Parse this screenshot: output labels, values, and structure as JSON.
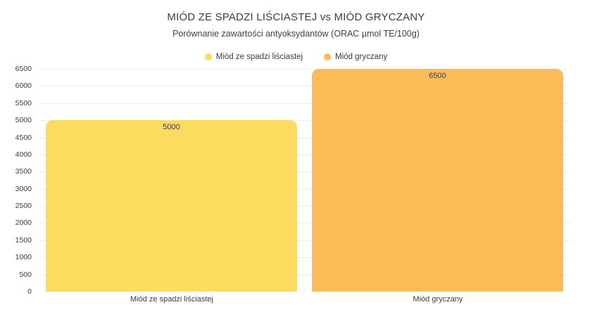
{
  "header": {
    "title": "MIÓD ZE SPADZI LIŚCIASTEJ vs MIÓD GRYCZANY",
    "subtitle": "Porównanie zawartości antyoksydantów (ORAC µmol TE/100g)"
  },
  "chart_data": {
    "type": "bar",
    "title": "MIÓD ZE SPADZI LIŚCIASTEJ vs MIÓD GRYCZANY",
    "subtitle": "Porównanie zawartości antyoksydantów (ORAC µmol TE/100g)",
    "categories": [
      "Miód ze spadzi liściastej",
      "Miód gryczany"
    ],
    "values": [
      5000,
      6500
    ],
    "data_labels": [
      "5000",
      "6500"
    ],
    "bar_colors": [
      "#FCDB5F",
      "#FBBB57"
    ],
    "legend": [
      {
        "label": "Miód ze spadzi liściastej",
        "color": "#FCDB5F"
      },
      {
        "label": "Miód gryczany",
        "color": "#FBBB57"
      }
    ],
    "legend_position": "top",
    "xlabel": "",
    "ylabel": "",
    "ylim": [
      0,
      6500
    ],
    "yticks": [
      0,
      500,
      1000,
      1500,
      2000,
      2500,
      3000,
      3500,
      4000,
      4500,
      5000,
      5500,
      6000,
      6500
    ],
    "grid": true,
    "grid_color": "#EDEDED",
    "background": "#FFFFFF",
    "text_color": "#3C3C3C"
  }
}
